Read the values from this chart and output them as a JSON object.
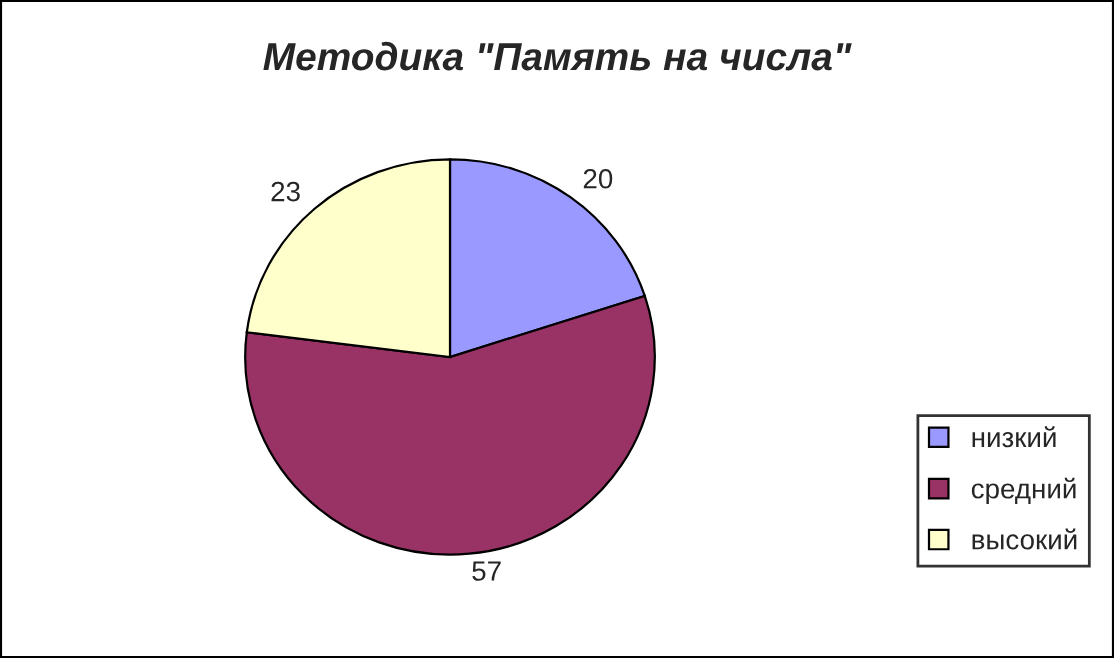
{
  "chart_data": {
    "type": "pie",
    "title": "Методика \"Память на числа\"",
    "categories": [
      "низкий",
      "средний",
      "высокий"
    ],
    "values": [
      20,
      57,
      23
    ],
    "colors": [
      "#9999ff",
      "#993366",
      "#ffffcc"
    ],
    "data_labels": true,
    "legend": "right"
  }
}
